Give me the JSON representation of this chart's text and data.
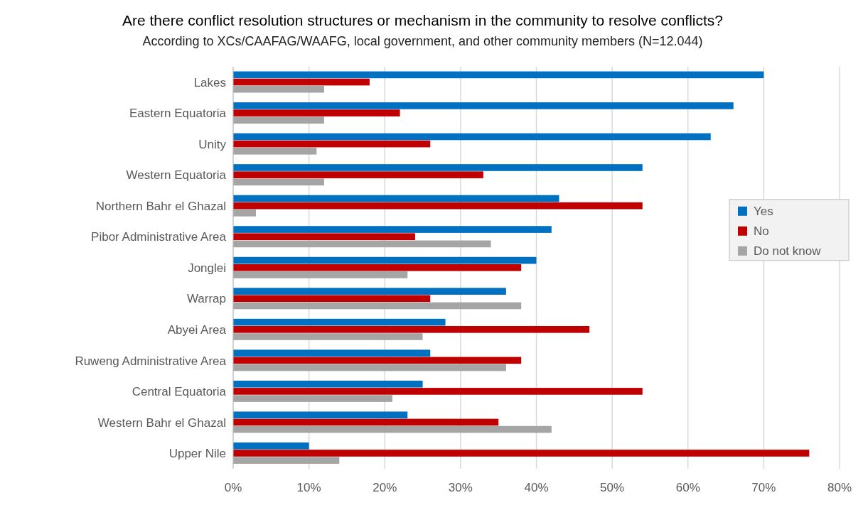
{
  "chart_data": {
    "type": "bar",
    "orientation": "horizontal",
    "title": "Are there conflict resolution structures or mechanism in the community to resolve conflicts?",
    "subtitle": "According to XCs/CAAFAG/WAAFG, local government, and other community members (N=12.044)",
    "categories": [
      "Lakes",
      "Eastern Equatoria",
      "Unity",
      "Western Equatoria",
      "Northern Bahr el Ghazal",
      "Pibor Administrative Area",
      "Jonglei",
      "Warrap",
      "Abyei Area",
      "Ruweng Administrative Area",
      "Central Equatoria",
      "Western Bahr el Ghazal",
      "Upper Nile"
    ],
    "series": [
      {
        "name": "Yes",
        "color": "#0070c0",
        "values": [
          70,
          66,
          63,
          54,
          43,
          42,
          40,
          36,
          28,
          26,
          25,
          23,
          10
        ]
      },
      {
        "name": "No",
        "color": "#c00000",
        "values": [
          18,
          22,
          26,
          33,
          54,
          24,
          38,
          26,
          47,
          38,
          54,
          35,
          76
        ]
      },
      {
        "name": "Do not know",
        "color": "#a5a5a5",
        "values": [
          12,
          12,
          11,
          12,
          3,
          34,
          23,
          38,
          25,
          36,
          21,
          42,
          14
        ]
      }
    ],
    "xlim": [
      0,
      80
    ],
    "xticks": [
      {
        "value": 0,
        "label": "0%"
      },
      {
        "value": 10,
        "label": "10%"
      },
      {
        "value": 20,
        "label": "20%"
      },
      {
        "value": 30,
        "label": "30%"
      },
      {
        "value": 40,
        "label": "40%"
      },
      {
        "value": 50,
        "label": "50%"
      },
      {
        "value": 60,
        "label": "60%"
      },
      {
        "value": 70,
        "label": "70%"
      },
      {
        "value": 80,
        "label": "80%"
      }
    ],
    "grid": "x",
    "legend": "right"
  }
}
